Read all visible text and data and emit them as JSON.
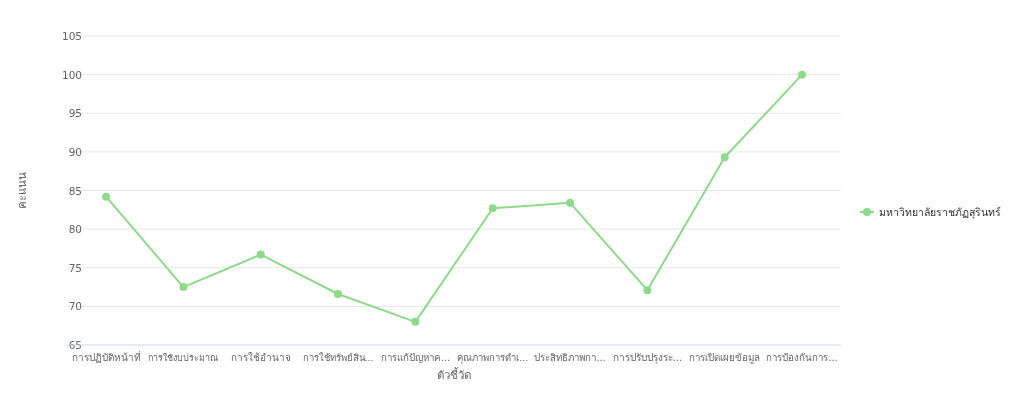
{
  "chart_data": {
    "type": "line",
    "categories": [
      "การปฏิบัติหน้าที่",
      "การใช้งบประมาณ",
      "การใช้อำนาจ",
      "การใช้ทรัพย์สิน...",
      "การแก้ปัญหาค...",
      "คุณภาพการดำเ...",
      "ประสิทธิภาพกา...",
      "การปรับปรุงระ...",
      "การเปิดเผยข้อมูล",
      "การป้องกันการ..."
    ],
    "series": [
      {
        "name": "มหาวิทยาลัยราชภัฏสุรินทร์",
        "color": "#8fd98a",
        "values": [
          84.2,
          72.5,
          76.7,
          71.6,
          68.0,
          82.7,
          83.4,
          72.1,
          89.3,
          100
        ]
      }
    ],
    "xlabel": "ตัวชี้วัด",
    "ylabel": "คะแนน",
    "ylim": [
      65,
      105
    ],
    "yticks": [
      65,
      70,
      75,
      80,
      85,
      90,
      95,
      100,
      105
    ],
    "grid": "y",
    "legend": "right",
    "marker": "circle",
    "line_style": "solid"
  }
}
